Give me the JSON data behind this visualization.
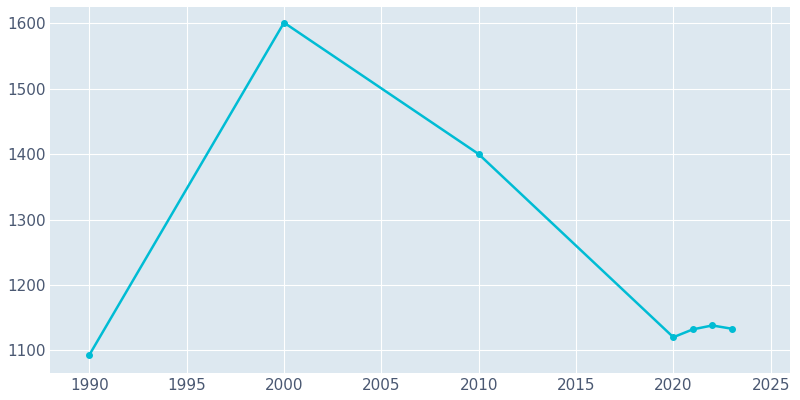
{
  "years": [
    1990,
    2000,
    2010,
    2020,
    2021,
    2022,
    2023
  ],
  "population": [
    1093,
    1601,
    1400,
    1120,
    1132,
    1138,
    1133
  ],
  "line_color": "#00bcd4",
  "marker": "o",
  "marker_size": 4,
  "line_width": 1.8,
  "fig_bg_color": "#ffffff",
  "plot_bg_color": "#dde8f0",
  "grid_color": "#ffffff",
  "xlim": [
    1988,
    2026
  ],
  "ylim": [
    1065,
    1625
  ],
  "xticks": [
    1990,
    1995,
    2000,
    2005,
    2010,
    2015,
    2020,
    2025
  ],
  "yticks": [
    1100,
    1200,
    1300,
    1400,
    1500,
    1600
  ],
  "tick_label_color": "#4a5872",
  "tick_label_fontsize": 11,
  "figsize": [
    8.0,
    4.0
  ],
  "dpi": 100
}
